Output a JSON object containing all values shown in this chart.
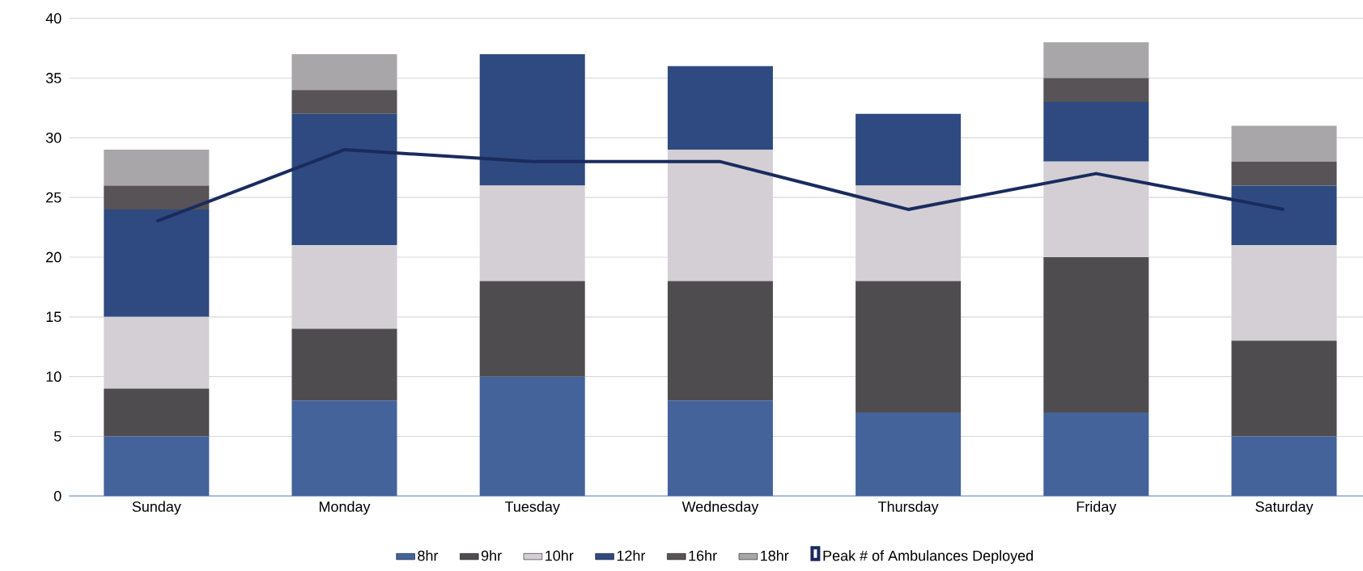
{
  "chart_data": {
    "type": "bar",
    "stacked": true,
    "categories": [
      "Sunday",
      "Monday",
      "Tuesday",
      "Wednesday",
      "Thursday",
      "Friday",
      "Saturday"
    ],
    "series": [
      {
        "name": "8hr",
        "color": "#44639b",
        "values": [
          5,
          8,
          10,
          8,
          7,
          7,
          5
        ]
      },
      {
        "name": "9hr",
        "color": "#4f4c50",
        "values": [
          4,
          6,
          8,
          10,
          11,
          13,
          8
        ]
      },
      {
        "name": "10hr",
        "color": "#d3cfd4",
        "values": [
          6,
          7,
          8,
          11,
          8,
          8,
          8
        ]
      },
      {
        "name": "12hr",
        "color": "#2f4a80",
        "values": [
          9,
          11,
          11,
          7,
          6,
          5,
          5
        ]
      },
      {
        "name": "16hr",
        "color": "#575356",
        "values": [
          2,
          2,
          0,
          0,
          0,
          2,
          2
        ]
      },
      {
        "name": "18hr",
        "color": "#a9a6a9",
        "values": [
          3,
          3,
          0,
          0,
          0,
          3,
          3
        ]
      },
      {
        "name": "Peak # of Ambulances Deployed",
        "type": "line",
        "color": "#1a2b5e",
        "values": [
          23,
          29,
          28,
          28,
          24,
          27,
          24
        ]
      }
    ],
    "ylim": [
      0,
      40
    ],
    "yticks": [
      0,
      5,
      10,
      15,
      20,
      25,
      30,
      35,
      40
    ],
    "grid": "y",
    "legend": "bottom"
  }
}
